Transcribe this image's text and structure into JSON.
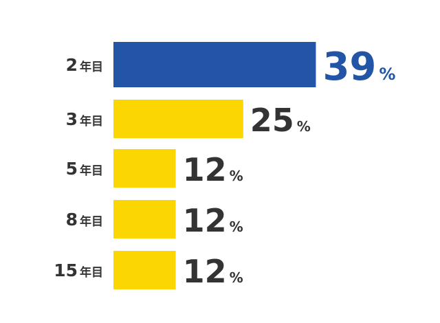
{
  "chart_data": {
    "type": "bar",
    "categories": [
      "2年目",
      "3年目",
      "5年目",
      "8年目",
      "15年目"
    ],
    "values": [
      39,
      25,
      12,
      12,
      12
    ],
    "value_labels": [
      "39%",
      "25%",
      "12%",
      "12%",
      "12%"
    ],
    "colors": [
      "#2355a6",
      "#fcd600",
      "#fcd600",
      "#fcd600",
      "#fcd600"
    ],
    "label_colors": [
      "#2355a6",
      "#333333",
      "#333333",
      "#333333",
      "#333333"
    ]
  }
}
